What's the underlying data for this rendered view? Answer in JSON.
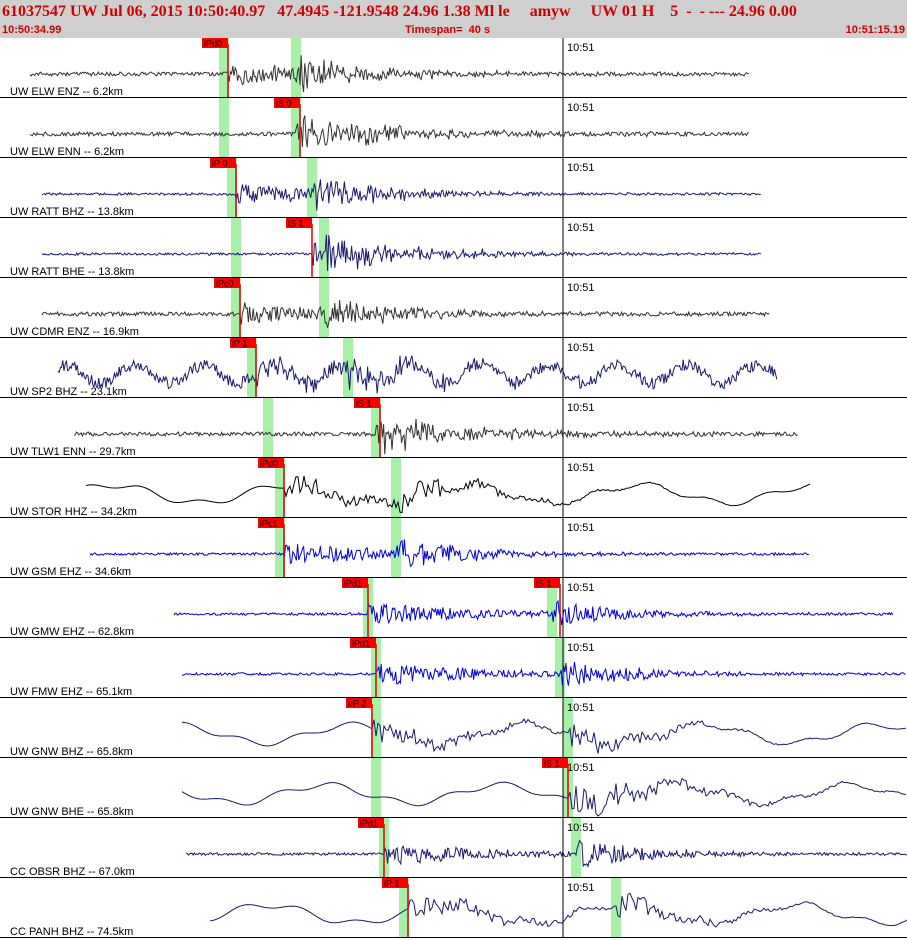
{
  "header": {
    "title": "61037547 UW Jul 06, 2015 10:50:40.97   47.4945 -121.9548 24.96 1.38 Ml le     amyw     UW 01 H    5  -  - --- 24.96 0.00",
    "start_time": "10:50:34.99",
    "timespan": "Timespan=  40 s",
    "end_time": "10:51:15.19"
  },
  "minute_label": "10:51",
  "colors": {
    "header_bg": "#cfcfcf",
    "header_text": "#d00000",
    "pick_red": "#e00000",
    "pick_label_bg": "#ff0000",
    "theoretical_green": "#a8f0a8",
    "trace_gray": "#333333",
    "trace_navy": "#1a1a6e",
    "trace_black": "#000000",
    "trace_blue": "#0000e0"
  },
  "channels": [
    {
      "label": "UW ELW ENZ -- 6.2km",
      "color": "trace_gray",
      "picks": [
        {
          "label": "iPd0",
          "t": 5.7
        }
      ],
      "greens": [
        5.6,
        7.4
      ],
      "span": [
        0,
        18.0
      ],
      "kind": "noisy"
    },
    {
      "label": "UW ELW ENN -- 6.2km",
      "color": "trace_gray",
      "picks": [
        {
          "label": "iS 0",
          "t": 7.5
        }
      ],
      "greens": [
        5.6,
        7.4
      ],
      "span": [
        0,
        18.0
      ],
      "kind": "noisy"
    },
    {
      "label": "UW RATT BHZ -- 13.8km",
      "color": "trace_navy",
      "picks": [
        {
          "label": "iP 0",
          "t": 5.9
        }
      ],
      "greens": [
        5.8,
        7.8
      ],
      "span": [
        0.3,
        18.3
      ],
      "kind": "mid"
    },
    {
      "label": "UW RATT BHE -- 13.8km",
      "color": "trace_navy",
      "picks": [
        {
          "label": "iS 1",
          "t": 7.8
        }
      ],
      "greens": [
        5.9,
        8.1
      ],
      "span": [
        0.3,
        18.3
      ],
      "kind": "mid"
    },
    {
      "label": "UW CDMR ENZ -- 16.9km",
      "color": "trace_gray",
      "picks": [
        {
          "label": "iPc0",
          "t": 6.0
        }
      ],
      "greens": [
        5.9,
        8.1
      ],
      "span": [
        0.3,
        18.5
      ],
      "kind": "noisy"
    },
    {
      "label": "UW SP2 BHZ -- 23.1km",
      "color": "trace_navy",
      "picks": [
        {
          "label": "iP 1",
          "t": 6.4
        }
      ],
      "greens": [
        6.3,
        8.7
      ],
      "span": [
        0.7,
        18.7
      ],
      "kind": "wavy"
    },
    {
      "label": "UW TLW1 ENN -- 29.7km",
      "color": "trace_gray",
      "picks": [
        {
          "label": "iS 1",
          "t": 9.5
        }
      ],
      "greens": [
        6.7,
        9.4
      ],
      "span": [
        1.1,
        19.2
      ],
      "kind": "noisy"
    },
    {
      "label": "UW STOR HHZ -- 34.2km",
      "color": "trace_black",
      "picks": [
        {
          "label": "iPd0",
          "t": 7.1
        }
      ],
      "greens": [
        7.0,
        9.9
      ],
      "span": [
        1.4,
        19.5
      ],
      "kind": "long"
    },
    {
      "label": "UW GSM EHZ -- 34.6km",
      "color": "trace_blue",
      "picks": [
        {
          "label": "iPc1",
          "t": 7.1
        }
      ],
      "greens": [
        7.0,
        9.9
      ],
      "span": [
        1.5,
        19.5
      ],
      "kind": "spiky"
    },
    {
      "label": "UW GMW EHZ -- 62.8km",
      "color": "trace_blue",
      "picks": [
        {
          "label": "iPd1",
          "t": 9.2
        },
        {
          "label": "iS 1",
          "t": 14.0
        }
      ],
      "greens": [
        9.2,
        13.8
      ],
      "span": [
        3.6,
        21.6
      ],
      "kind": "spiky"
    },
    {
      "label": "UW FMW EHZ -- 65.1km",
      "color": "trace_blue",
      "picks": [
        {
          "label": "iPd1",
          "t": 9.4
        }
      ],
      "greens": [
        9.4,
        14.0
      ],
      "span": [
        3.8,
        21.9
      ],
      "kind": "spiky"
    },
    {
      "label": "UW GNW BHZ -- 65.8km",
      "color": "trace_navy",
      "picks": [
        {
          "label": "eP 2",
          "t": 9.3
        }
      ],
      "greens": [
        9.4,
        14.2
      ],
      "span": [
        3.8,
        21.9
      ],
      "kind": "long"
    },
    {
      "label": "UW GNW BHE -- 65.8km",
      "color": "trace_navy",
      "picks": [
        {
          "label": "iS 1",
          "t": 14.2
        }
      ],
      "greens": [
        9.4,
        14.2
      ],
      "span": [
        3.8,
        21.9
      ],
      "kind": "long"
    },
    {
      "label": "CC OBSR BHZ -- 67.0km",
      "color": "trace_navy",
      "picks": [
        {
          "label": "iPd1",
          "t": 9.6
        }
      ],
      "greens": [
        9.6,
        14.4
      ],
      "span": [
        3.9,
        22.0
      ],
      "kind": "mid"
    },
    {
      "label": "CC PANH BHZ -- 74.5km",
      "color": "trace_navy",
      "picks": [
        {
          "label": "iP 1",
          "t": 10.2
        }
      ],
      "greens": [
        10.1,
        15.4
      ],
      "span": [
        4.5,
        22.3
      ],
      "kind": "long"
    }
  ]
}
